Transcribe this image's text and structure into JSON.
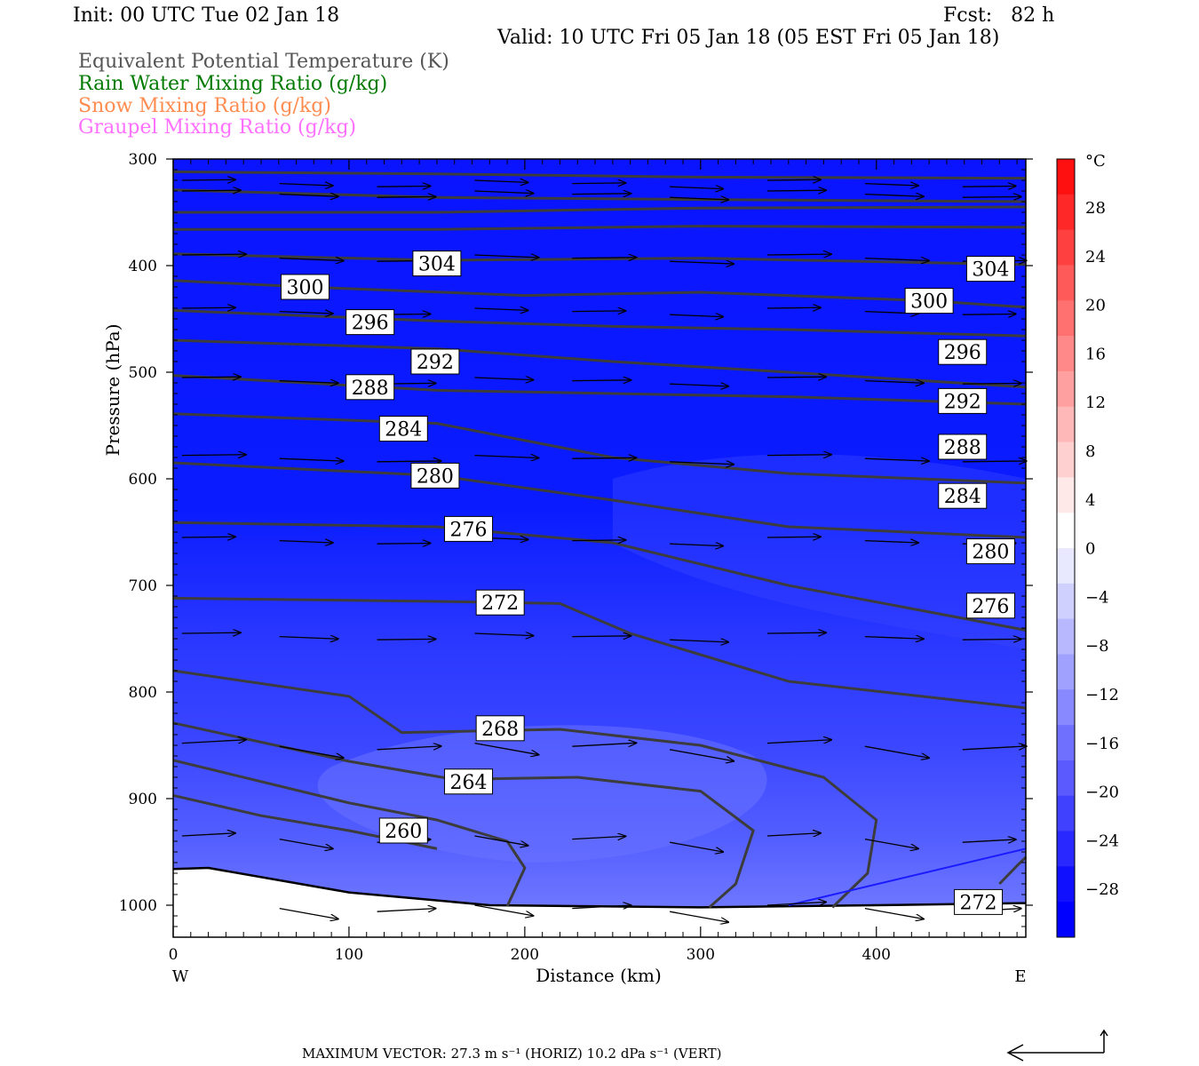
{
  "header": {
    "init": "Init: 00 UTC Tue 02 Jan 18",
    "fcst": "Fcst:   82 h",
    "valid": "Valid: 10 UTC Fri 05 Jan 18 (05 EST Fri 05 Jan 18)"
  },
  "legend": [
    {
      "label": "Equivalent Potential Temperature (K)",
      "color": "#555555"
    },
    {
      "label": "Rain Water Mixing Ratio (g/kg)",
      "color": "#007a00"
    },
    {
      "label": "Snow Mixing Ratio (g/kg)",
      "color": "#ff8c50"
    },
    {
      "label": "Graupel Mixing Ratio (g/kg)",
      "color": "#ff70ff"
    }
  ],
  "footer": {
    "text": "MAXIMUM VECTOR:  27.3 m s⁻¹ (HORIZ)          10.2 dPa s⁻¹ (VERT)"
  },
  "chart_data": {
    "type": "contour",
    "xlabel": "Distance (km)",
    "ylabel": "Pressure (hPa)",
    "xlim": [
      0,
      485
    ],
    "ylim": [
      1030,
      300
    ],
    "x_ticks": [
      0,
      100,
      200,
      300,
      400
    ],
    "y_ticks": [
      300,
      400,
      500,
      600,
      700,
      800,
      900,
      1000
    ],
    "x_end_labels": {
      "left": "W",
      "right": "E"
    },
    "colorbar": {
      "unit": "°C",
      "tick_labels": [
        "28",
        "24",
        "20",
        "16",
        "12",
        "8",
        "4",
        "0",
        "−4",
        "−8",
        "−12",
        "−16",
        "−20",
        "−24",
        "−28"
      ]
    },
    "theta_e_labels": [
      {
        "value": "304",
        "x": 150,
        "p": 398
      },
      {
        "value": "304",
        "x": 465,
        "p": 403
      },
      {
        "value": "300",
        "x": 75,
        "p": 420
      },
      {
        "value": "300",
        "x": 430,
        "p": 433
      },
      {
        "value": "296",
        "x": 112,
        "p": 453
      },
      {
        "value": "296",
        "x": 449,
        "p": 481
      },
      {
        "value": "292",
        "x": 149,
        "p": 490
      },
      {
        "value": "292",
        "x": 449,
        "p": 527
      },
      {
        "value": "288",
        "x": 112,
        "p": 514
      },
      {
        "value": "288",
        "x": 449,
        "p": 570
      },
      {
        "value": "284",
        "x": 131,
        "p": 553
      },
      {
        "value": "284",
        "x": 449,
        "p": 616
      },
      {
        "value": "280",
        "x": 149,
        "p": 597
      },
      {
        "value": "280",
        "x": 465,
        "p": 668
      },
      {
        "value": "276",
        "x": 168,
        "p": 647
      },
      {
        "value": "276",
        "x": 465,
        "p": 719
      },
      {
        "value": "272",
        "x": 186,
        "p": 716
      },
      {
        "value": "272",
        "x": 458,
        "p": 997
      },
      {
        "value": "268",
        "x": 186,
        "p": 834
      },
      {
        "value": "264",
        "x": 168,
        "p": 884
      },
      {
        "value": "260",
        "x": 131,
        "p": 930
      }
    ],
    "theta_e_lines": [
      [
        [
          0,
          312
        ],
        [
          150,
          314
        ],
        [
          300,
          317
        ],
        [
          485,
          318
        ]
      ],
      [
        [
          0,
          329
        ],
        [
          150,
          336
        ],
        [
          300,
          338
        ],
        [
          485,
          340
        ]
      ],
      [
        [
          0,
          350
        ],
        [
          150,
          350
        ],
        [
          300,
          346
        ],
        [
          485,
          345
        ]
      ],
      [
        [
          0,
          366
        ],
        [
          150,
          366
        ],
        [
          300,
          363
        ],
        [
          485,
          364
        ]
      ],
      [
        [
          0,
          389
        ],
        [
          150,
          395
        ],
        [
          300,
          393
        ],
        [
          485,
          399
        ]
      ],
      [
        [
          0,
          414
        ],
        [
          75,
          420
        ],
        [
          200,
          428
        ],
        [
          300,
          425
        ],
        [
          430,
          433
        ],
        [
          485,
          439
        ]
      ],
      [
        [
          0,
          442
        ],
        [
          150,
          452
        ],
        [
          250,
          457
        ],
        [
          350,
          460
        ],
        [
          485,
          466
        ]
      ],
      [
        [
          0,
          470
        ],
        [
          150,
          478
        ],
        [
          250,
          490
        ],
        [
          350,
          500
        ],
        [
          485,
          514
        ]
      ],
      [
        [
          0,
          503
        ],
        [
          150,
          517
        ],
        [
          250,
          520
        ],
        [
          350,
          523
        ],
        [
          485,
          530
        ]
      ],
      [
        [
          0,
          539
        ],
        [
          150,
          548
        ],
        [
          250,
          580
        ],
        [
          350,
          595
        ],
        [
          485,
          604
        ]
      ],
      [
        [
          0,
          585
        ],
        [
          150,
          597
        ],
        [
          250,
          620
        ],
        [
          350,
          645
        ],
        [
          485,
          655
        ]
      ],
      [
        [
          0,
          641
        ],
        [
          150,
          645
        ],
        [
          250,
          660
        ],
        [
          350,
          700
        ],
        [
          485,
          742
        ]
      ],
      [
        [
          0,
          712
        ],
        [
          150,
          715
        ],
        [
          220,
          717
        ],
        [
          260,
          745
        ],
        [
          350,
          790
        ],
        [
          485,
          815
        ]
      ],
      [
        [
          0,
          780
        ],
        [
          100,
          804
        ],
        [
          130,
          838
        ],
        [
          220,
          835
        ],
        [
          300,
          850
        ],
        [
          370,
          880
        ],
        [
          400,
          920
        ],
        [
          395,
          970
        ],
        [
          375,
          1002
        ]
      ],
      [
        [
          0,
          829
        ],
        [
          100,
          865
        ],
        [
          160,
          882
        ],
        [
          230,
          880
        ],
        [
          300,
          893
        ],
        [
          330,
          930
        ],
        [
          320,
          980
        ],
        [
          305,
          1002
        ]
      ],
      [
        [
          0,
          864
        ],
        [
          100,
          904
        ],
        [
          150,
          920
        ],
        [
          190,
          940
        ],
        [
          200,
          965
        ],
        [
          190,
          1001
        ]
      ],
      [
        [
          0,
          897
        ],
        [
          50,
          916
        ],
        [
          100,
          930
        ],
        [
          130,
          940
        ],
        [
          150,
          947
        ]
      ],
      [
        [
          470,
          980
        ],
        [
          480,
          963
        ],
        [
          485,
          955
        ]
      ]
    ],
    "terrain_p": [
      [
        0,
        966
      ],
      [
        20,
        965
      ],
      [
        100,
        988
      ],
      [
        180,
        1000
      ],
      [
        300,
        1002
      ],
      [
        400,
        1000
      ],
      [
        485,
        998
      ]
    ],
    "blue_line": [
      [
        350,
        1000
      ],
      [
        485,
        947
      ]
    ]
  }
}
